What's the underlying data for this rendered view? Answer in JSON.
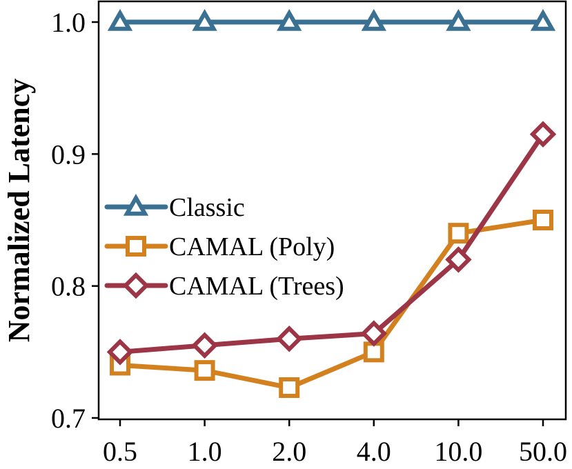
{
  "chart_data": {
    "type": "line",
    "title": "",
    "xlabel": "",
    "ylabel": "Normalized Latency",
    "categories": [
      "0.5",
      "1.0",
      "2.0",
      "4.0",
      "10.0",
      "50.0"
    ],
    "ylim": [
      0.7,
      1.0
    ],
    "yticks": [
      "0.7",
      "0.8",
      "0.9",
      "1.0"
    ],
    "grid": false,
    "legend_position": "center-left",
    "series": [
      {
        "name": "Classic",
        "values": [
          1.0,
          1.0,
          1.0,
          1.0,
          1.0,
          1.0
        ],
        "color": "#3a7193",
        "marker": "triangle"
      },
      {
        "name": "CAMAL (Poly)",
        "values": [
          0.74,
          0.736,
          0.723,
          0.75,
          0.84,
          0.85
        ],
        "color": "#d3811f",
        "marker": "square"
      },
      {
        "name": "CAMAL (Trees)",
        "values": [
          0.75,
          0.755,
          0.76,
          0.764,
          0.82,
          0.915
        ],
        "color": "#9c3545",
        "marker": "diamond"
      }
    ]
  }
}
